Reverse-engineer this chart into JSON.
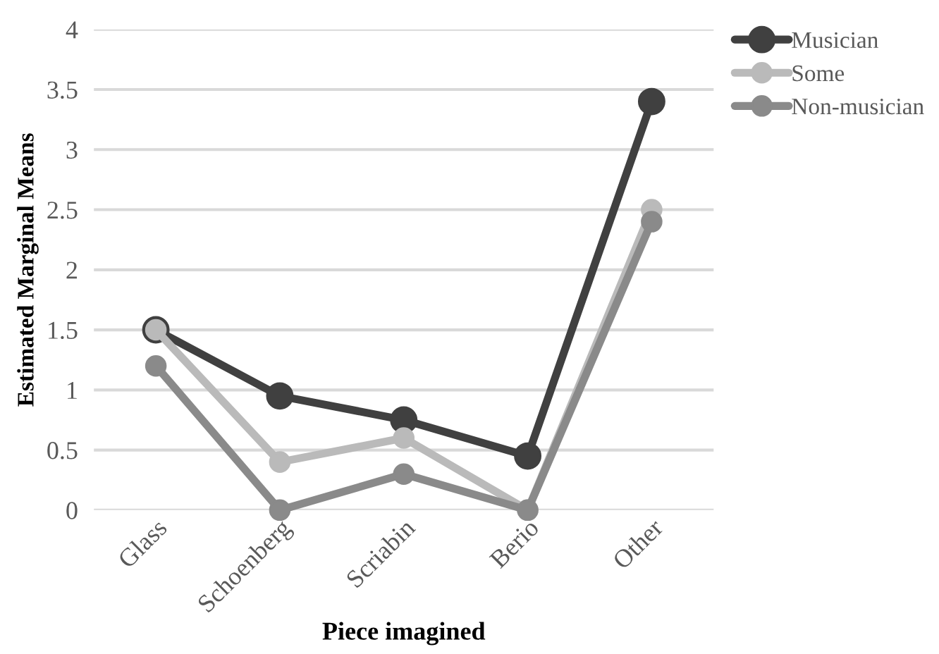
{
  "chart_data": {
    "type": "line",
    "xlabel": "Piece imagined",
    "ylabel": "Estimated Marginal Means",
    "categories": [
      "Glass",
      "Schoenberg",
      "Scriabin",
      "Berio",
      "Other"
    ],
    "series": [
      {
        "name": "Musician",
        "color": "#404040",
        "values": [
          1.5,
          0.95,
          0.75,
          0.45,
          3.4
        ]
      },
      {
        "name": "Some",
        "color": "#bababa",
        "values": [
          1.5,
          0.4,
          0.6,
          0,
          2.5
        ]
      },
      {
        "name": "Non-musician",
        "color": "#8a8a8a",
        "values": [
          1.2,
          0,
          0.3,
          0,
          2.4
        ]
      }
    ],
    "ylim": [
      0,
      4
    ],
    "yticks": [
      0,
      0.5,
      1,
      1.5,
      2,
      2.5,
      3,
      3.5,
      4
    ],
    "grid": "y",
    "legend": "top right",
    "marker": "circle",
    "line_style": "solid"
  }
}
